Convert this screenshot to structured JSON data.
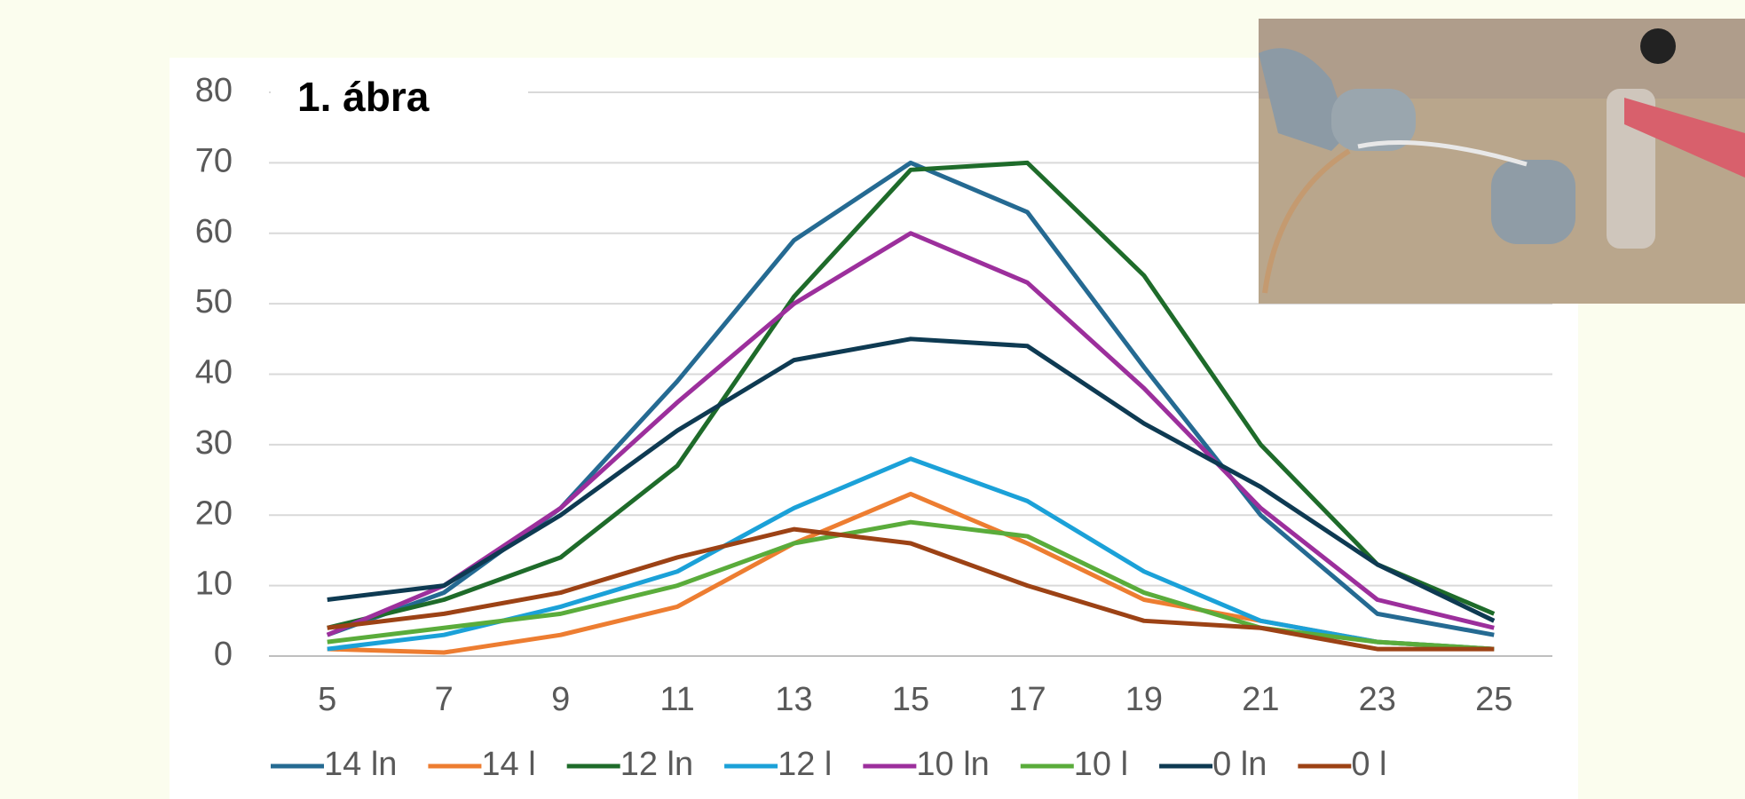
{
  "chart_data": {
    "type": "line",
    "title": "1. ábra",
    "x": [
      5,
      7,
      9,
      11,
      13,
      15,
      17,
      19,
      21,
      23,
      25
    ],
    "xlim": [
      4,
      26
    ],
    "xticks": [
      5,
      7,
      9,
      11,
      13,
      15,
      17,
      19,
      21,
      23,
      25
    ],
    "ylim": [
      0,
      80
    ],
    "yticks": [
      0,
      10,
      20,
      30,
      40,
      50,
      60,
      70,
      80
    ],
    "grid": true,
    "legend": "bottom",
    "series": [
      {
        "name": "14 ln",
        "color": "#256a92",
        "values": [
          3,
          9,
          21,
          39,
          59,
          70,
          63,
          41,
          20,
          6,
          3
        ]
      },
      {
        "name": "14 l",
        "color": "#ed7d31",
        "values": [
          1,
          0.5,
          3,
          7,
          16,
          23,
          16,
          8,
          5,
          2,
          1
        ]
      },
      {
        "name": "12 ln",
        "color": "#1e6b2a",
        "values": [
          4,
          8,
          14,
          27,
          51,
          69,
          70,
          54,
          30,
          13,
          6
        ]
      },
      {
        "name": "12 l",
        "color": "#1ba1d8",
        "values": [
          1,
          3,
          7,
          12,
          21,
          28,
          22,
          12,
          5,
          2,
          1
        ]
      },
      {
        "name": "10 ln",
        "color": "#9c2f9c",
        "values": [
          3,
          10,
          21,
          36,
          50,
          60,
          53,
          38,
          21,
          8,
          4
        ]
      },
      {
        "name": "10 l",
        "color": "#5aac3b",
        "values": [
          2,
          4,
          6,
          10,
          16,
          19,
          17,
          9,
          4,
          2,
          1
        ]
      },
      {
        "name": "0 ln",
        "color": "#0e3a52",
        "values": [
          8,
          10,
          20,
          32,
          42,
          45,
          44,
          33,
          24,
          13,
          5
        ]
      },
      {
        "name": "0 l",
        "color": "#9c4215",
        "values": [
          4,
          6,
          9,
          14,
          18,
          16,
          10,
          5,
          4,
          1,
          1
        ]
      }
    ]
  }
}
